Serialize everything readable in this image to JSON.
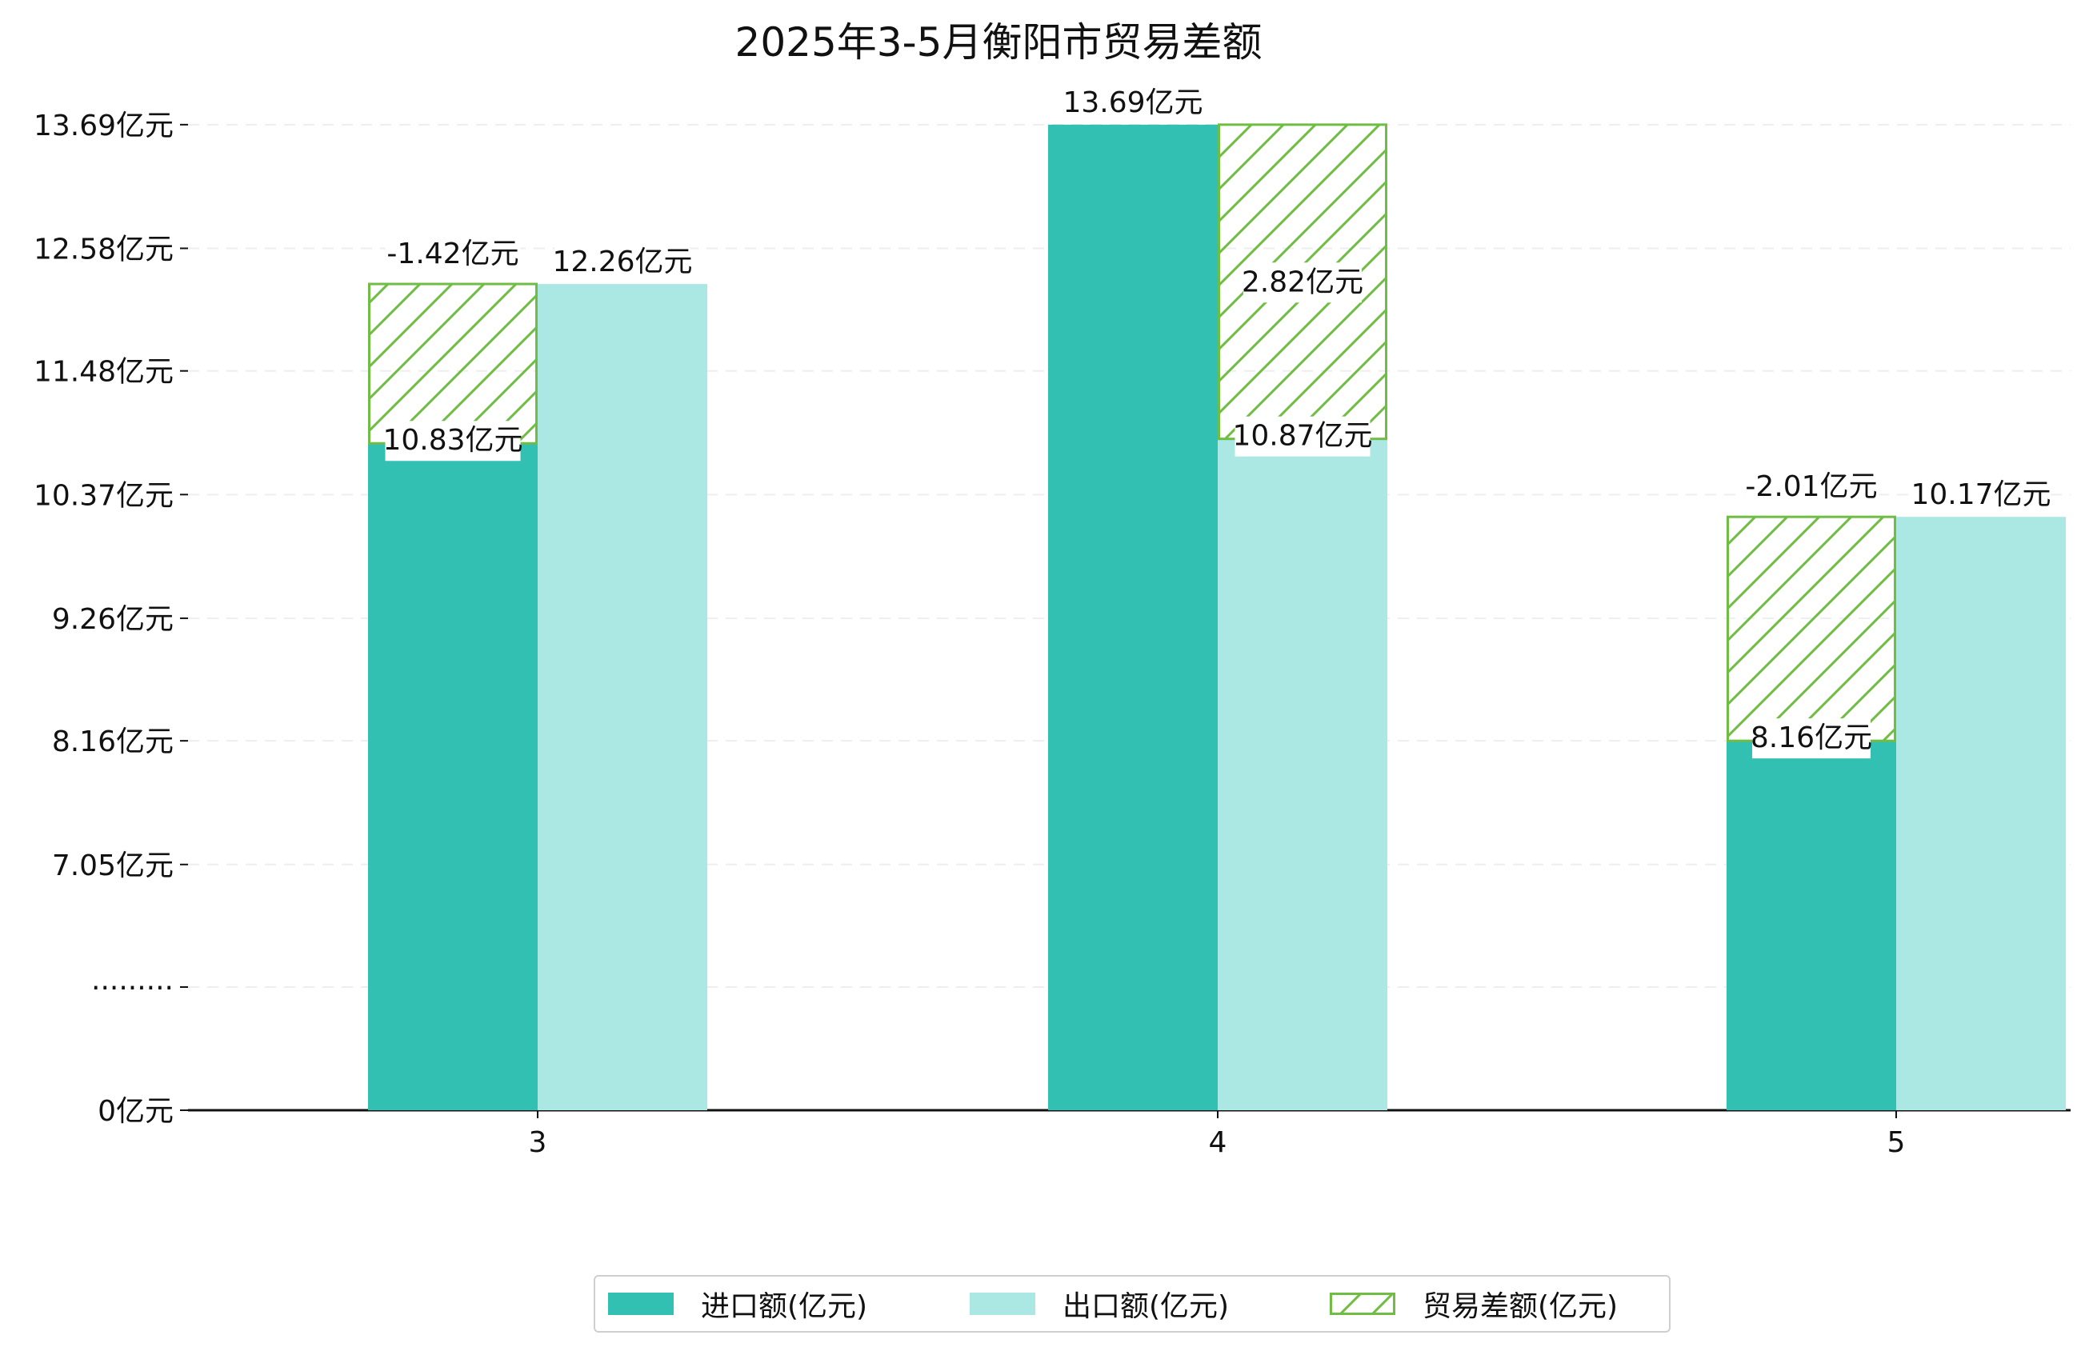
{
  "colors": {
    "import": "#31c0b2",
    "export": "#abe8e3",
    "balance_stroke": "#6fbd43",
    "grid": "#eeeeee",
    "axis": "#111111",
    "text": "#111111"
  },
  "chart_data": {
    "type": "bar",
    "title": "2025年3-5月衡阳市贸易差额",
    "categories": [
      "3",
      "4",
      "5"
    ],
    "series": [
      {
        "name": "进口额(亿元)",
        "values": [
          10.83,
          13.69,
          8.16
        ]
      },
      {
        "name": "出口额(亿元)",
        "values": [
          12.26,
          10.87,
          10.17
        ]
      },
      {
        "name": "贸易差额(亿元)",
        "values": [
          -1.42,
          2.82,
          -2.01
        ]
      }
    ],
    "data_labels": {
      "import": [
        "10.83亿元",
        "13.69亿元",
        "8.16亿元"
      ],
      "export": [
        "12.26亿元",
        "10.87亿元",
        "10.17亿元"
      ],
      "balance": [
        "-1.42亿元",
        "2.82亿元",
        "-2.01亿元"
      ]
    },
    "y_ticks": [
      {
        "value": 0,
        "label": "0亿元"
      },
      {
        "value": 5.95,
        "label": "·········"
      },
      {
        "value": 7.05,
        "label": "7.05亿元"
      },
      {
        "value": 8.16,
        "label": "8.16亿元"
      },
      {
        "value": 9.26,
        "label": "9.26亿元"
      },
      {
        "value": 10.37,
        "label": "10.37亿元"
      },
      {
        "value": 11.48,
        "label": "11.48亿元"
      },
      {
        "value": 12.58,
        "label": "12.58亿元"
      },
      {
        "value": 13.69,
        "label": "13.69亿元"
      }
    ],
    "axis_break": true,
    "grid": true,
    "legend_position": "bottom-center"
  }
}
